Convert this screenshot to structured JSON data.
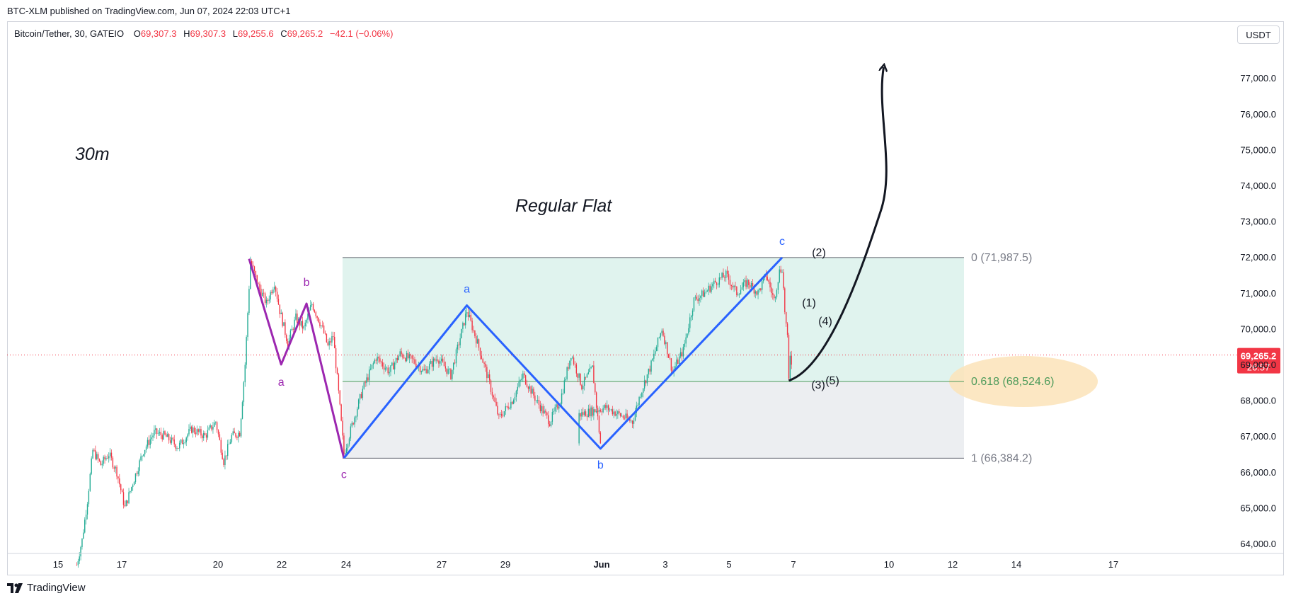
{
  "publisher": "BTC-XLM published on TradingView.com, Jun 07, 2024 22:03 UTC+1",
  "legend": {
    "symbol": "Bitcoin/Tether, 30, GATEIO",
    "open_key": "O",
    "open": "69,307.3",
    "high_key": "H",
    "high": "69,307.3",
    "low_key": "L",
    "low": "69,255.6",
    "close_key": "C",
    "close": "69,265.2",
    "change": "−42.1 (−0.06%)"
  },
  "currency": "USDT",
  "brand": "TradingView",
  "colors": {
    "up": "#22ab94",
    "down": "#f23645",
    "wave_abc_1": "#9c27b0",
    "wave_abc_2": "#2962ff",
    "fib_upper": "#e0f3ee",
    "fib_lower": "#eceef1",
    "fib_highlight": "#fbe3b9"
  },
  "chart_data": {
    "type": "candlestick",
    "timeframe": "30",
    "y_axis": {
      "min": 63500,
      "max": 77600,
      "ticks": [
        "77,000.0",
        "76,000.0",
        "75,000.0",
        "74,000.0",
        "73,000.0",
        "72,000.0",
        "71,000.0",
        "70,000.0",
        "69,000.0",
        "68,000.0",
        "67,000.0",
        "66,000.0",
        "65,000.0",
        "64,000.0"
      ]
    },
    "x_axis": {
      "ticks": [
        "15",
        "17",
        "20",
        "22",
        "24",
        "27",
        "29",
        "Jun",
        "3",
        "5",
        "7",
        "10",
        "12",
        "14",
        "17"
      ]
    },
    "current_price": {
      "value": 69265.2,
      "label": "69,265.2",
      "countdown": "26:57"
    },
    "price_path": [
      {
        "t": "15 14:00",
        "v": 63400
      },
      {
        "t": "15 18:00",
        "v": 64100
      },
      {
        "t": "15 22:00",
        "v": 65200
      },
      {
        "t": "16 02:00",
        "v": 66600
      },
      {
        "t": "16 08:00",
        "v": 66200
      },
      {
        "t": "16 14:00",
        "v": 66500
      },
      {
        "t": "16 20:00",
        "v": 66000
      },
      {
        "t": "17 02:00",
        "v": 65000
      },
      {
        "t": "17 08:00",
        "v": 65700
      },
      {
        "t": "17 16:00",
        "v": 66600
      },
      {
        "t": "18 00:00",
        "v": 67100
      },
      {
        "t": "18 08:00",
        "v": 67000
      },
      {
        "t": "18 18:00",
        "v": 66700
      },
      {
        "t": "19 04:00",
        "v": 67200
      },
      {
        "t": "19 14:00",
        "v": 67000
      },
      {
        "t": "19 22:00",
        "v": 67400
      },
      {
        "t": "20 04:00",
        "v": 66300
      },
      {
        "t": "20 10:00",
        "v": 67000
      },
      {
        "t": "20 16:00",
        "v": 67100
      },
      {
        "t": "20 20:00",
        "v": 69000
      },
      {
        "t": "21 00:00",
        "v": 71900
      },
      {
        "t": "21 06:00",
        "v": 71200
      },
      {
        "t": "21 12:00",
        "v": 70700
      },
      {
        "t": "21 18:00",
        "v": 71300
      },
      {
        "t": "21 22:00",
        "v": 70500
      },
      {
        "t": "22 04:00",
        "v": 69600
      },
      {
        "t": "22 10:00",
        "v": 70300
      },
      {
        "t": "22 16:00",
        "v": 70000
      },
      {
        "t": "22 22:00",
        "v": 70700
      },
      {
        "t": "23 06:00",
        "v": 70000
      },
      {
        "t": "23 10:00",
        "v": 69500
      },
      {
        "t": "23 14:00",
        "v": 69800
      },
      {
        "t": "23 18:00",
        "v": 68200
      },
      {
        "t": "23 22:00",
        "v": 66500
      },
      {
        "t": "24 04:00",
        "v": 67300
      },
      {
        "t": "24 12:00",
        "v": 68300
      },
      {
        "t": "24 22:00",
        "v": 69200
      },
      {
        "t": "25 08:00",
        "v": 68800
      },
      {
        "t": "25 16:00",
        "v": 69300
      },
      {
        "t": "26 02:00",
        "v": 69100
      },
      {
        "t": "26 10:00",
        "v": 68800
      },
      {
        "t": "26 20:00",
        "v": 69200
      },
      {
        "t": "27 06:00",
        "v": 68700
      },
      {
        "t": "27 18:00",
        "v": 70500
      },
      {
        "t": "28 02:00",
        "v": 69600
      },
      {
        "t": "28 10:00",
        "v": 68600
      },
      {
        "t": "28 18:00",
        "v": 67500
      },
      {
        "t": "29 04:00",
        "v": 68000
      },
      {
        "t": "29 12:00",
        "v": 68700
      },
      {
        "t": "29 22:00",
        "v": 68000
      },
      {
        "t": "30 08:00",
        "v": 67400
      },
      {
        "t": "30 16:00",
        "v": 68000
      },
      {
        "t": "31 00:00",
        "v": 69300
      },
      {
        "t": "31 08:00",
        "v": 68400
      },
      {
        "t": "31 16:00",
        "v": 68900
      },
      {
        "t": "31 22:00",
        "v": 66800
      },
      {
        "t": "Jun 1 06:00",
        "v": 67600
      },
      {
        "t": "Jun 1 16:00",
        "v": 67700
      },
      {
        "t": "Jun 2 02:00",
        "v": 67800
      },
      {
        "t": "Jun 2 12:00",
        "v": 67600
      },
      {
        "t": "Jun 2 22:00",
        "v": 67400
      },
      {
        "t": "Jun 3 04:00",
        "v": 68200
      },
      {
        "t": "Jun 3 12:00",
        "v": 69000
      },
      {
        "t": "Jun 3 20:00",
        "v": 70000
      },
      {
        "t": "Jun 4 04:00",
        "v": 68800
      },
      {
        "t": "Jun 4 12:00",
        "v": 69400
      },
      {
        "t": "Jun 4 20:00",
        "v": 70800
      },
      {
        "t": "Jun 5 04:00",
        "v": 71000
      },
      {
        "t": "Jun 5 12:00",
        "v": 71300
      },
      {
        "t": "Jun 5 20:00",
        "v": 71500
      },
      {
        "t": "Jun 6 04:00",
        "v": 71000
      },
      {
        "t": "Jun 6 12:00",
        "v": 71300
      },
      {
        "t": "Jun 6 20:00",
        "v": 71000
      },
      {
        "t": "Jun 7 02:00",
        "v": 71500
      },
      {
        "t": "Jun 7 08:00",
        "v": 70800
      },
      {
        "t": "Jun 7 12:00",
        "v": 71600
      },
      {
        "t": "Jun 7 14:00",
        "v": 71700
      },
      {
        "t": "Jun 7 16:00",
        "v": 70500
      },
      {
        "t": "Jun 7 18:00",
        "v": 69700
      },
      {
        "t": "Jun 7 19:00",
        "v": 68550
      },
      {
        "t": "Jun 7 20:00",
        "v": 69300
      },
      {
        "t": "Jun 7 21:00",
        "v": 69100
      },
      {
        "t": "Jun 7 22:00",
        "v": 69265
      }
    ],
    "fibonacci": {
      "levels": [
        {
          "ratio": "0",
          "price": 71987.5,
          "label": "0 (71,987.5)"
        },
        {
          "ratio": "0.618",
          "price": 68524.6,
          "label": "0.618 (68,524.6)"
        },
        {
          "ratio": "1",
          "price": 66384.2,
          "label": "1 (66,384.2)"
        }
      ]
    },
    "waves": [
      {
        "points": [
          {
            "t": "20 23:00",
            "v": 71950
          },
          {
            "t": "21 23:00",
            "v": 69000
          },
          {
            "t": "22 18:00",
            "v": 70700
          },
          {
            "t": "23 22:00",
            "v": 66384
          }
        ],
        "labels": [
          "a",
          "b",
          "c"
        ]
      },
      {
        "points": [
          {
            "t": "23 22:00",
            "v": 66384
          },
          {
            "t": "27 18:00",
            "v": 70650
          },
          {
            "t": "31 22:00",
            "v": 66650
          },
          {
            "t": "Jun 7 14:00",
            "v": 71987
          }
        ],
        "labels": [
          "a",
          "b",
          "c"
        ]
      }
    ],
    "subwaves": [
      "(1)",
      "(2)",
      "(3)",
      "(4)",
      "(5)"
    ],
    "projection": {
      "from": {
        "t": "Jun 7 19:00",
        "v": 68550
      },
      "to": {
        "t": "Jun 10 18:00",
        "v": 77300
      }
    },
    "annotations": {
      "timeframe_note": "30m",
      "pattern_note": "Regular Flat"
    }
  }
}
